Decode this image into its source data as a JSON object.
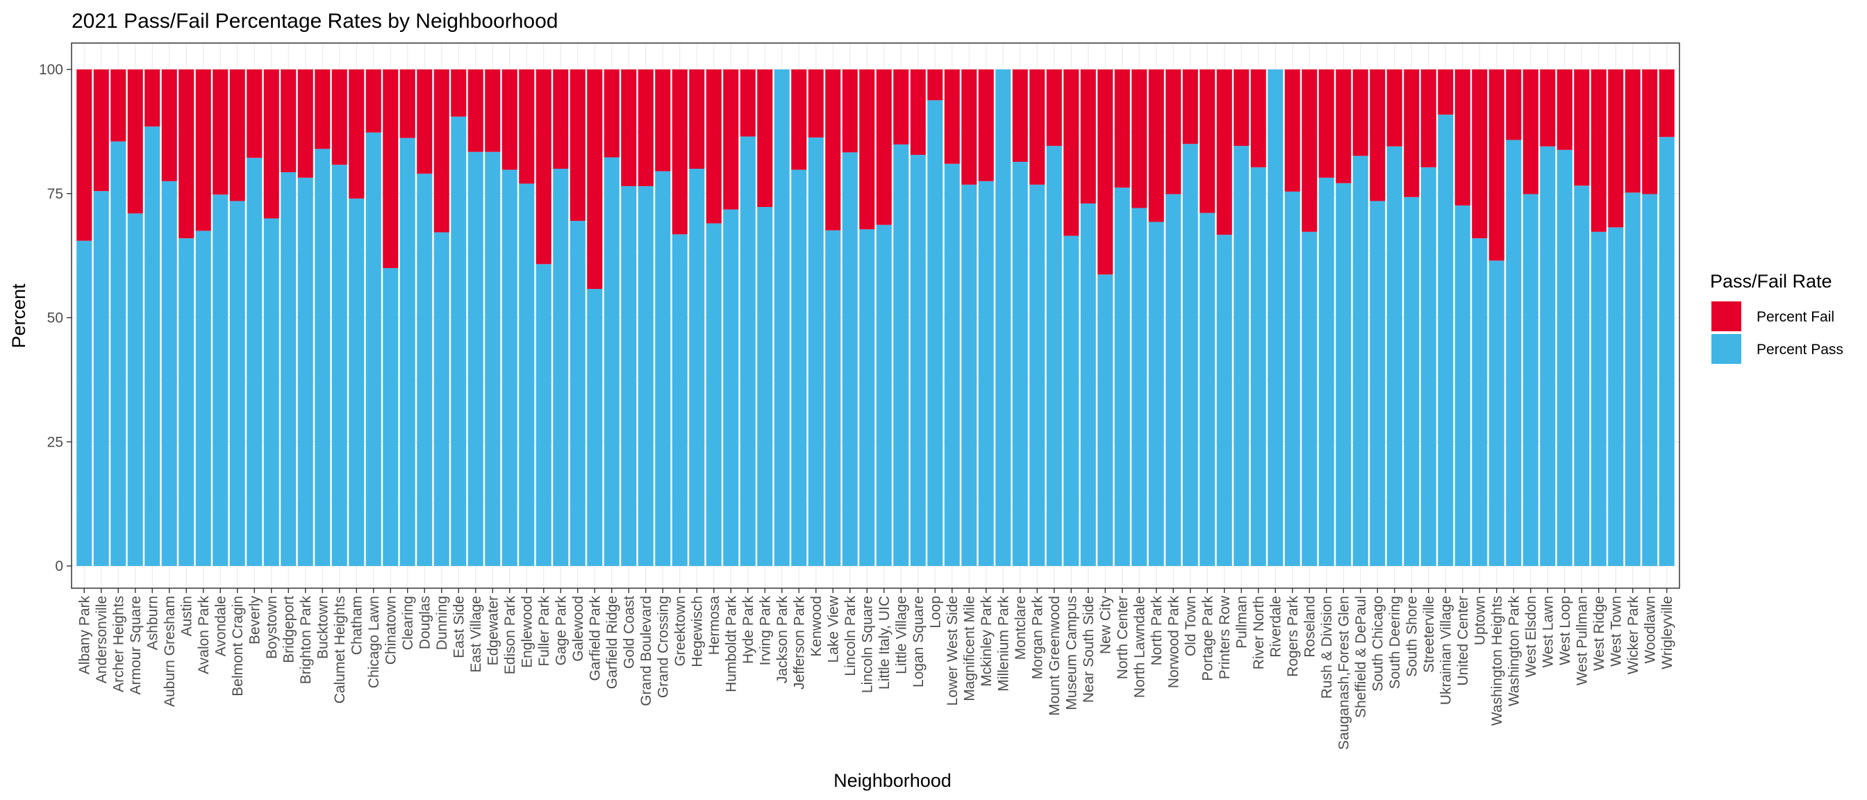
{
  "chart_data": {
    "type": "bar",
    "stacked": true,
    "title": "2021 Pass/Fail Percentage Rates by Neighboorhood",
    "xlabel": "Neighborhood",
    "ylabel": "Percent",
    "ylim": [
      0,
      100
    ],
    "yticks": [
      0,
      25,
      50,
      75,
      100
    ],
    "grid": true,
    "legend": {
      "title": "Pass/Fail Rate",
      "position": "right",
      "items": [
        "Percent Fail",
        "Percent Pass"
      ]
    },
    "colors": {
      "Percent Fail": "#E4002B",
      "Percent Pass": "#41B6E6"
    },
    "categories": [
      "Albany Park",
      "Andersonville",
      "Archer Heights",
      "Armour Square",
      "Ashburn",
      "Auburn Gresham",
      "Austin",
      "Avalon Park",
      "Avondale",
      "Belmont Cragin",
      "Beverly",
      "Boystown",
      "Bridgeport",
      "Brighton Park",
      "Bucktown",
      "Calumet Heights",
      "Chatham",
      "Chicago Lawn",
      "Chinatown",
      "Clearing",
      "Douglas",
      "Dunning",
      "East Side",
      "East Village",
      "Edgewater",
      "Edison Park",
      "Englewood",
      "Fuller Park",
      "Gage Park",
      "Galewood",
      "Garfield Park",
      "Garfield Ridge",
      "Gold Coast",
      "Grand Boulevard",
      "Grand Crossing",
      "Greektown",
      "Hegewisch",
      "Hermosa",
      "Humboldt Park",
      "Hyde Park",
      "Irving Park",
      "Jackson Park",
      "Jefferson Park",
      "Kenwood",
      "Lake View",
      "Lincoln Park",
      "Lincoln Square",
      "Little Italy, UIC",
      "Little Village",
      "Logan Square",
      "Loop",
      "Lower West Side",
      "Magnificent Mile",
      "Mckinley Park",
      "Millenium Park",
      "Montclare",
      "Morgan Park",
      "Mount Greenwood",
      "Museum Campus",
      "Near South Side",
      "New City",
      "North Center",
      "North Lawndale",
      "North Park",
      "Norwood Park",
      "Old Town",
      "Portage Park",
      "Printers Row",
      "Pullman",
      "River North",
      "Riverdale",
      "Rogers Park",
      "Roseland",
      "Rush & Division",
      "Sauganash,Forest Glen",
      "Sheffield & DePaul",
      "South Chicago",
      "South Deering",
      "South Shore",
      "Streeterville",
      "Ukrainian Village",
      "United Center",
      "Uptown",
      "Washington Heights",
      "Washington Park",
      "West Elsdon",
      "West Lawn",
      "West Loop",
      "West Pullman",
      "West Ridge",
      "West Town",
      "Wicker Park",
      "Woodlawn",
      "Wrigleyville"
    ],
    "series": [
      {
        "name": "Percent Pass",
        "values": [
          65.5,
          75.5,
          85.5,
          71,
          88.5,
          77.5,
          66,
          67.5,
          74.8,
          73.5,
          82.2,
          70,
          79.3,
          78.2,
          84,
          80.8,
          74,
          87.3,
          60,
          86.2,
          79,
          67.2,
          90.5,
          83.4,
          83.4,
          79.8,
          77,
          60.8,
          80,
          69.5,
          55.8,
          82.3,
          76.5,
          76.5,
          79.5,
          66.8,
          80,
          69,
          71.8,
          86.5,
          72.3,
          100,
          79.8,
          86.3,
          67.6,
          83.3,
          67.8,
          68.7,
          84.9,
          82.8,
          93.8,
          81,
          76.8,
          77.5,
          100,
          81.4,
          76.8,
          84.6,
          66.5,
          73,
          58.7,
          76.2,
          72.1,
          69.3,
          74.9,
          85,
          71.1,
          66.7,
          84.6,
          80.3,
          100,
          75.4,
          67.3,
          78.2,
          77.1,
          82.6,
          73.5,
          84.5,
          74.3,
          80.3,
          90.9,
          72.6,
          66,
          61.5,
          85.8,
          74.9,
          84.5,
          83.8,
          76.6,
          67.3,
          68.2,
          75.2,
          74.9,
          86.4
        ]
      },
      {
        "name": "Percent Fail",
        "values": [
          34.5,
          24.5,
          14.5,
          29,
          11.5,
          22.5,
          34,
          32.5,
          25.2,
          26.5,
          17.8,
          30,
          20.7,
          21.8,
          16,
          19.2,
          26,
          12.7,
          40,
          13.8,
          21,
          32.8,
          9.5,
          16.6,
          16.6,
          20.2,
          23,
          39.2,
          20,
          30.5,
          44.2,
          17.7,
          23.5,
          23.5,
          20.5,
          33.2,
          20,
          31,
          28.2,
          13.5,
          27.7,
          0,
          20.2,
          13.7,
          32.4,
          16.7,
          32.2,
          31.3,
          15.1,
          17.2,
          6.2,
          19,
          23.2,
          22.5,
          0,
          18.6,
          23.2,
          15.4,
          33.5,
          27,
          41.3,
          23.8,
          27.9,
          30.7,
          25.1,
          15,
          28.9,
          33.3,
          15.4,
          19.7,
          0,
          24.6,
          32.7,
          21.8,
          22.9,
          17.4,
          26.5,
          15.5,
          25.7,
          19.7,
          9.1,
          27.4,
          34,
          38.5,
          14.2,
          25.1,
          15.5,
          16.2,
          23.4,
          32.7,
          31.8,
          24.8,
          25.1,
          13.6
        ]
      }
    ]
  }
}
